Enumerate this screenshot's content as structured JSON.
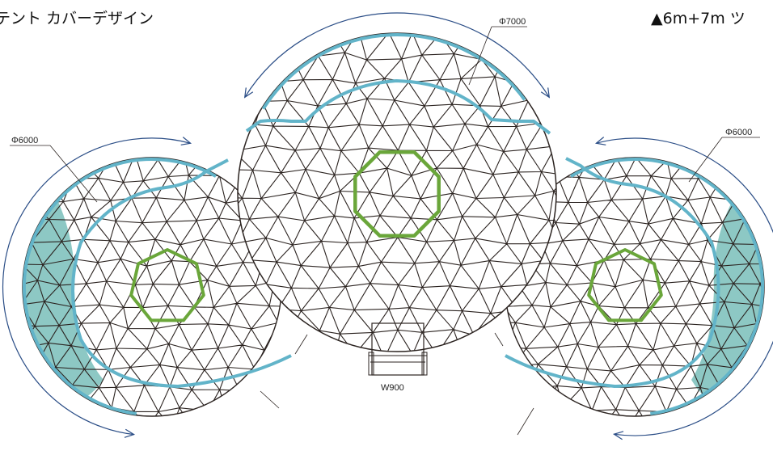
{
  "header": {
    "title_left": "テント カバーデザイン",
    "title_right": "▲6m+7m ツ"
  },
  "dimensions": {
    "left_dome": "Φ6000",
    "center_dome": "Φ7000",
    "right_dome": "Φ6000",
    "entrance": "W900"
  },
  "colors": {
    "frame": "#2b2320",
    "cover_band": "#62b4c9",
    "cover_fill": "#2f9a93",
    "skylight": "#6aa63a",
    "dimension": "#2a4d86"
  }
}
